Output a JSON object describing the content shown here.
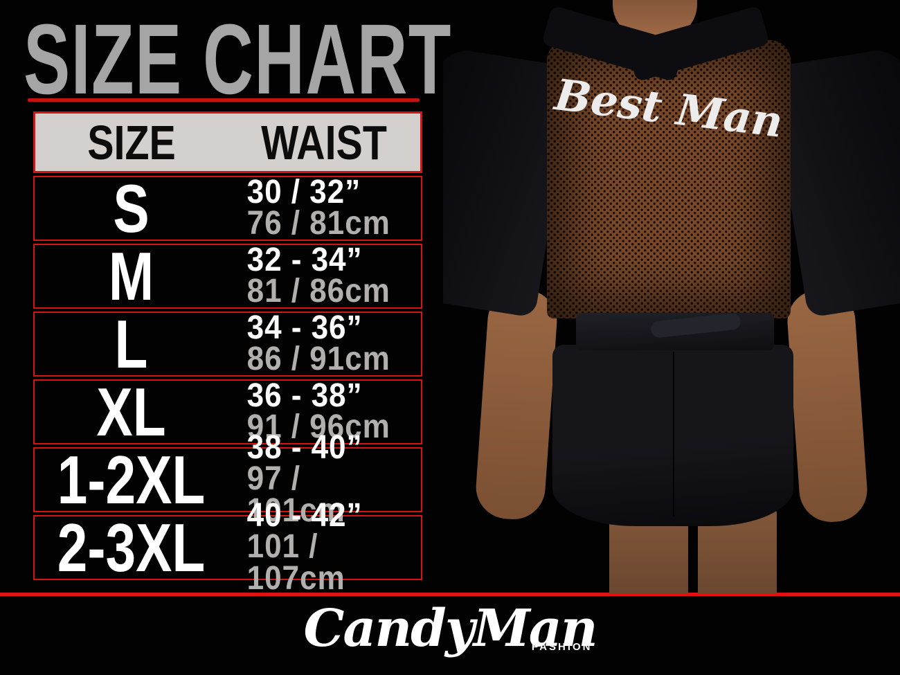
{
  "title": "SIZE CHART",
  "chart_data": {
    "type": "table",
    "title": "SIZE CHART",
    "columns": [
      "SIZE",
      "WAIST"
    ],
    "rows": [
      {
        "size": "S",
        "waist_inches": "30 / 32”",
        "waist_cm": "76 / 81cm"
      },
      {
        "size": "M",
        "waist_inches": "32 - 34”",
        "waist_cm": "81 / 86cm"
      },
      {
        "size": "L",
        "waist_inches": "34 - 36”",
        "waist_cm": "86 / 91cm"
      },
      {
        "size": "XL",
        "waist_inches": "36 - 38”",
        "waist_cm": "91 / 96cm"
      },
      {
        "size": "1-2XL",
        "waist_inches": "38 - 40”",
        "waist_cm": "97 / 101cm"
      },
      {
        "size": "2-3XL",
        "waist_inches": "40 - 42”",
        "waist_cm": "101 / 107cm"
      }
    ]
  },
  "photo": {
    "garment_text": "Best Man",
    "description": "rear view of model wearing black robe with sheer mesh back panel"
  },
  "brand": {
    "name": "CandyMan",
    "tagline": "FASHION"
  },
  "colors": {
    "background": "#020202",
    "accent_red": "#d61414",
    "title_gray": "#a5a5a5",
    "header_bg": "#d3d0cd",
    "header_text": "#0c0c0c",
    "inches_text": "#fcfcfc",
    "cm_text_gray": "#b2b0ae",
    "mesh_brown": "#77492a",
    "skin_tone": "#9a6743"
  }
}
